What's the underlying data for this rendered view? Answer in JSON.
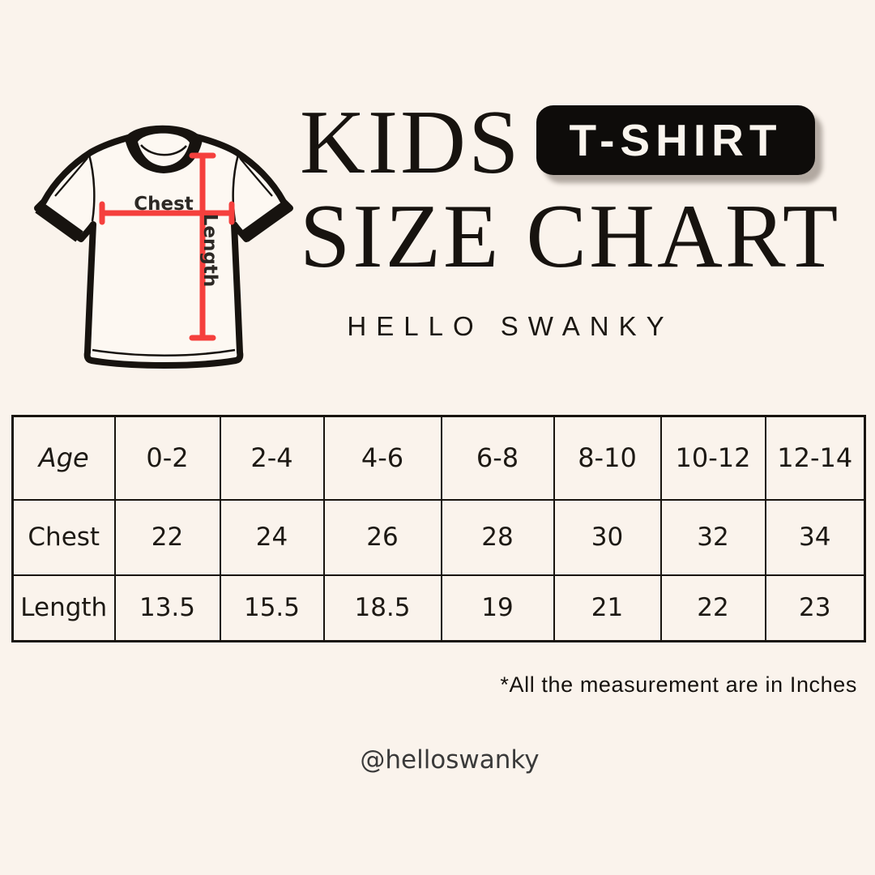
{
  "page": {
    "background": "#faf3ec",
    "ink": "#17130f",
    "accent_red": "#f5403d",
    "badge_background": "#0e0c0a",
    "badge_text_color": "#faf5ee"
  },
  "header": {
    "title_line1": "KIDS",
    "badge_label": "T-SHIRT",
    "title_line2": "SIZE CHART",
    "brand": "HELLO SWANKY"
  },
  "diagram": {
    "illustration": "ringer-tshirt-with-measurement-arrows",
    "chest_label": "Chest",
    "length_label": "Length"
  },
  "chart_data": {
    "type": "table",
    "title": "KIDS T-SHIRT SIZE CHART",
    "columns": [
      "Age",
      "0-2",
      "2-4",
      "4-6",
      "6-8",
      "8-10",
      "10-12",
      "12-14"
    ],
    "rows": [
      [
        "Chest",
        "22",
        "24",
        "26",
        "28",
        "30",
        "32",
        "34"
      ],
      [
        "Length",
        "13.5",
        "15.5",
        "18.5",
        "19",
        "21",
        "22",
        "23"
      ]
    ],
    "units": "Inches"
  },
  "footer": {
    "note": "*All the measurement are in Inches",
    "handle": "@helloswanky"
  }
}
